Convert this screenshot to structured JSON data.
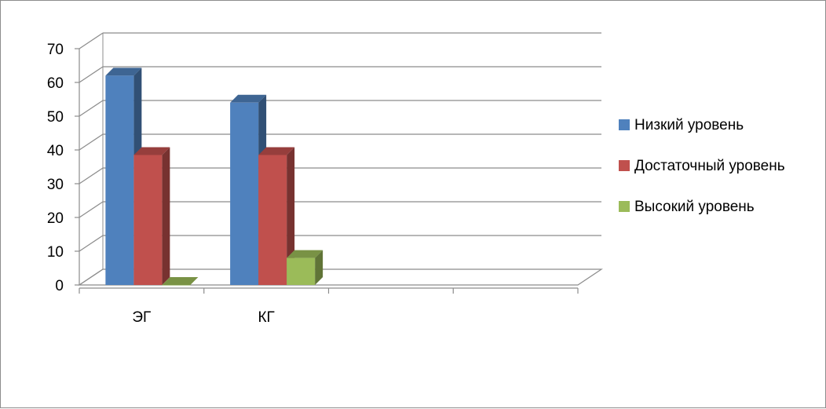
{
  "chart_data": {
    "type": "bar",
    "title": "",
    "xlabel": "",
    "ylabel": "",
    "categories": [
      "ЭГ",
      "КГ",
      "",
      ""
    ],
    "series": [
      {
        "name": "Низкий уровень",
        "color": "#4f81bd",
        "values": [
          62,
          54,
          null,
          null
        ]
      },
      {
        "name": "Достаточный уровень",
        "color": "#c0504d",
        "values": [
          38.5,
          38.5,
          null,
          null
        ]
      },
      {
        "name": "Высокий уровень",
        "color": "#9bbb59",
        "values": [
          0,
          8,
          null,
          null
        ]
      }
    ],
    "ylim": [
      0,
      70
    ],
    "yticks": [
      0,
      10,
      20,
      30,
      40,
      50,
      60,
      70
    ],
    "grid": true,
    "legend_position": "right",
    "style": "3d-clustered-column"
  }
}
